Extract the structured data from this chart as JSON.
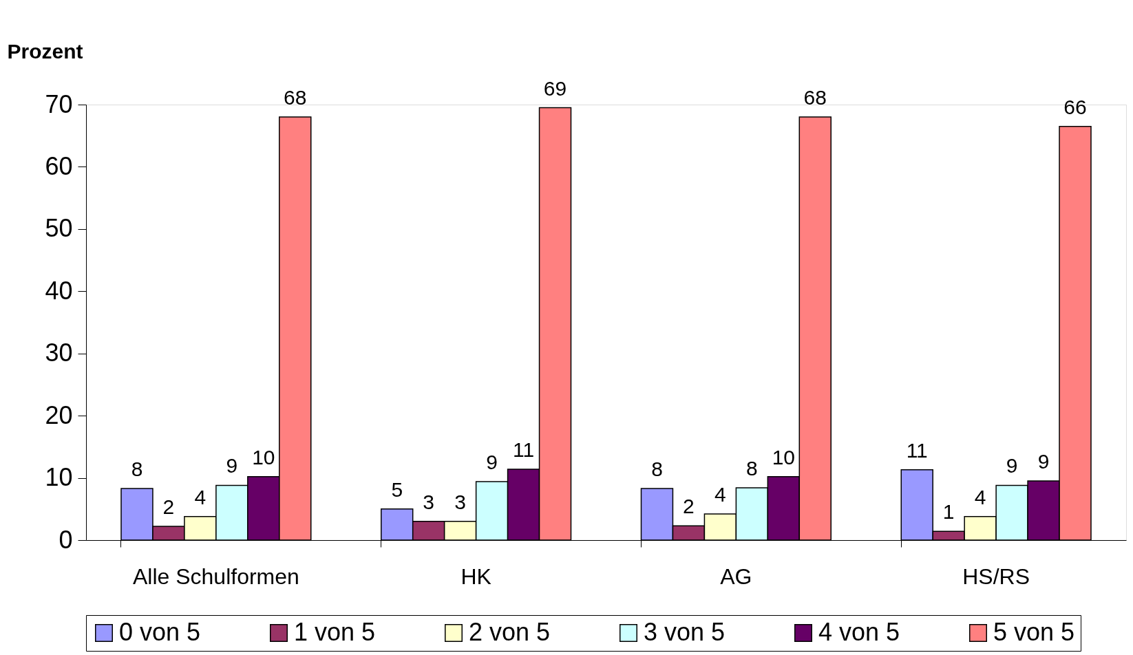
{
  "chart_data": {
    "type": "bar",
    "ylabel": "Prozent",
    "categories": [
      "Alle Schulformen",
      "HK",
      "AG",
      "HS/RS"
    ],
    "series": [
      {
        "name": "0 von 5",
        "color": "#9999ff",
        "values": [
          8.3,
          5.0,
          8.3,
          11.3
        ],
        "value_labels": [
          "8",
          "5",
          "8",
          "11"
        ]
      },
      {
        "name": "1 von 5",
        "color": "#993366",
        "values": [
          2.2,
          3.0,
          2.3,
          1.4
        ],
        "value_labels": [
          "2",
          "3",
          "2",
          "1"
        ]
      },
      {
        "name": "2 von 5",
        "color": "#ffffcc",
        "values": [
          3.8,
          3.0,
          4.2,
          3.8
        ],
        "value_labels": [
          "4",
          "3",
          "4",
          "4"
        ]
      },
      {
        "name": "3 von 5",
        "color": "#ccffff",
        "values": [
          8.8,
          9.4,
          8.4,
          8.8
        ],
        "value_labels": [
          "9",
          "9",
          "8",
          "9"
        ]
      },
      {
        "name": "4 von 5",
        "color": "#660066",
        "values": [
          10.2,
          11.4,
          10.2,
          9.5
        ],
        "value_labels": [
          "10",
          "11",
          "10",
          "9"
        ]
      },
      {
        "name": "5 von 5",
        "color": "#ff8080",
        "values": [
          68.0,
          69.5,
          68.0,
          66.5
        ],
        "value_labels": [
          "68",
          "69",
          "68",
          "66"
        ]
      }
    ],
    "ylim": [
      0,
      70
    ],
    "yticks": [
      0,
      10,
      20,
      30,
      40,
      50,
      60,
      70
    ],
    "grid": false,
    "legend": "bottom"
  }
}
